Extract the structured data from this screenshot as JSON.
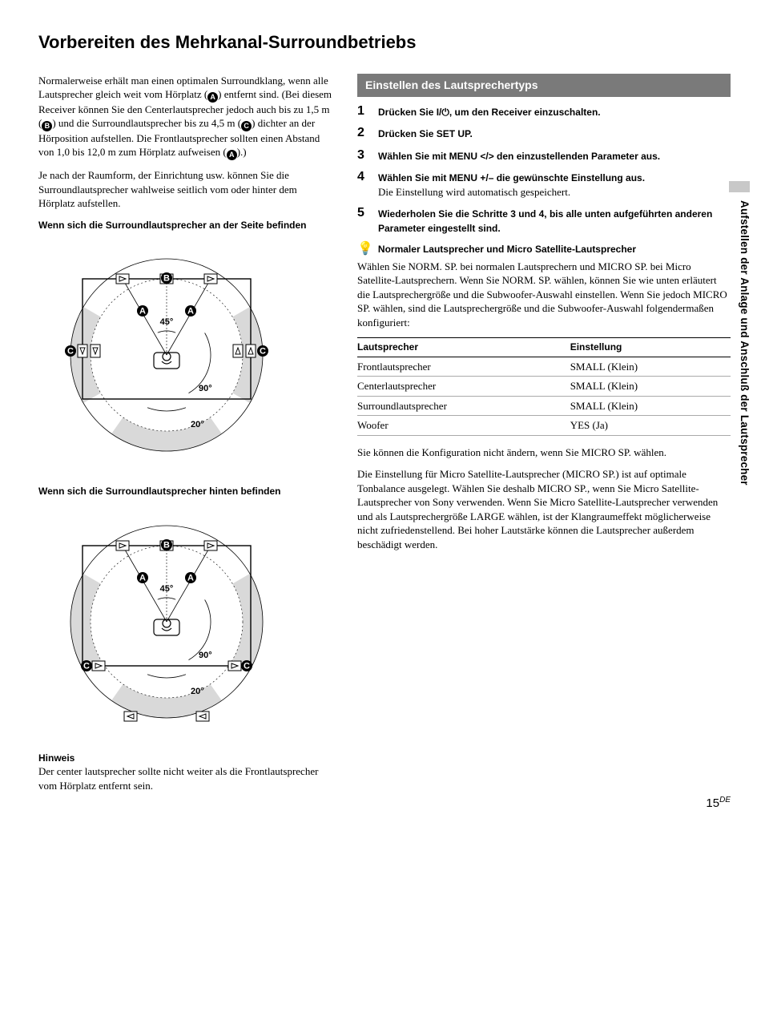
{
  "title": "Vorbereiten des Mehrkanal-Surroundbetriebs",
  "sideTab": "Aufstellen der Anlage und Anschluß der Lautsprecher",
  "left": {
    "para1a": "Normalerweise erhält man einen optimalen Surroundklang, wenn alle Lautsprecher gleich weit vom Hörplatz (",
    "para1b": ") entfernt sind. (Bei diesem Receiver können Sie den Centerlautsprecher jedoch auch bis zu 1,5 m (",
    "para1c": ") und die Surroundlautsprecher bis zu 4,5 m (",
    "para1d": ") dichter an der Hörposition aufstellen. Die Frontlautsprecher sollten einen Abstand von 1,0 bis 12,0 m zum Hörplatz aufweisen (",
    "para1e": ").)",
    "para2": "Je nach der Raumform, der Einrichtung usw. können Sie die Surroundlautsprecher wahlweise seitlich vom oder hinter dem Hörplatz aufstellen.",
    "diagCaption1": "Wenn sich die Surroundlautsprecher an der Seite befinden",
    "diagCaption2": "Wenn sich die Surroundlautsprecher hinten befinden",
    "hinweisHead": "Hinweis",
    "hinweisBody": "Der center lautsprecher sollte nicht weiter als die Frontlautsprecher vom Hörplatz entfernt sein."
  },
  "diagram": {
    "angle45": "45°",
    "angle90": "90°",
    "angle20": "20°",
    "labelA": "A",
    "labelB": "B",
    "labelC": "C"
  },
  "right": {
    "boxTitle": "Einstellen des Lautsprechertyps",
    "steps": [
      {
        "n": "1",
        "bold": "Drücken Sie I/",
        "boldAfter": ", um den Receiver einzuschalten.",
        "rest": ""
      },
      {
        "n": "2",
        "bold": "Drücken Sie SET UP.",
        "rest": ""
      },
      {
        "n": "3",
        "bold": "Wählen Sie mit MENU </> den einzustellenden Parameter aus.",
        "rest": ""
      },
      {
        "n": "4",
        "bold": "Wählen Sie mit MENU +/– die gewünschte Einstellung aus.",
        "rest": "Die Einstellung wird automatisch gespeichert."
      },
      {
        "n": "5",
        "bold": "Wiederholen Sie die Schritte 3 und 4, bis alle unten aufgeführten anderen Parameter eingestellt sind.",
        "rest": ""
      }
    ],
    "tipHead": "Normaler Lautsprecher und Micro Satellite-Lautsprecher",
    "tipBody": "Wählen Sie NORM. SP. bei normalen Lautsprechern und MICRO SP. bei Micro Satellite-Lautsprechern. Wenn Sie NORM. SP. wählen, können Sie wie unten erläutert die Lautsprechergröße und die Subwoofer-Auswahl einstellen. Wenn Sie jedoch MICRO SP. wählen, sind die Lautsprechergröße und die Subwoofer-Auswahl folgendermaßen konfiguriert:",
    "tableHead": {
      "c1": "Lautsprecher",
      "c2": "Einstellung"
    },
    "tableRows": [
      {
        "c1": "Frontlautsprecher",
        "c2": "SMALL (Klein)"
      },
      {
        "c1": "Centerlautsprecher",
        "c2": "SMALL (Klein)"
      },
      {
        "c1": "Surroundlautsprecher",
        "c2": "SMALL (Klein)"
      },
      {
        "c1": "Woofer",
        "c2": "YES (Ja)"
      }
    ],
    "afterTable1": "Sie können die Konfiguration nicht ändern, wenn Sie MICRO SP. wählen.",
    "afterTable2": "Die Einstellung für Micro Satellite-Lautsprecher (MICRO SP.) ist auf optimale Tonbalance ausgelegt. Wählen Sie deshalb MICRO SP., wenn Sie Micro Satellite-Lautsprecher von Sony verwenden. Wenn Sie Micro Satellite-Lautsprecher verwenden und als Lautsprechergröße LARGE wählen, ist der Klangraumeffekt möglicherweise nicht zufriedenstellend. Bei hoher Lautstärke können die Lautsprecher außerdem beschädigt werden."
  },
  "pageNumber": "15",
  "pageLang": "DE",
  "colors": {
    "boxBg": "#7a7a7a",
    "arcFill": "#d9d9d9"
  }
}
